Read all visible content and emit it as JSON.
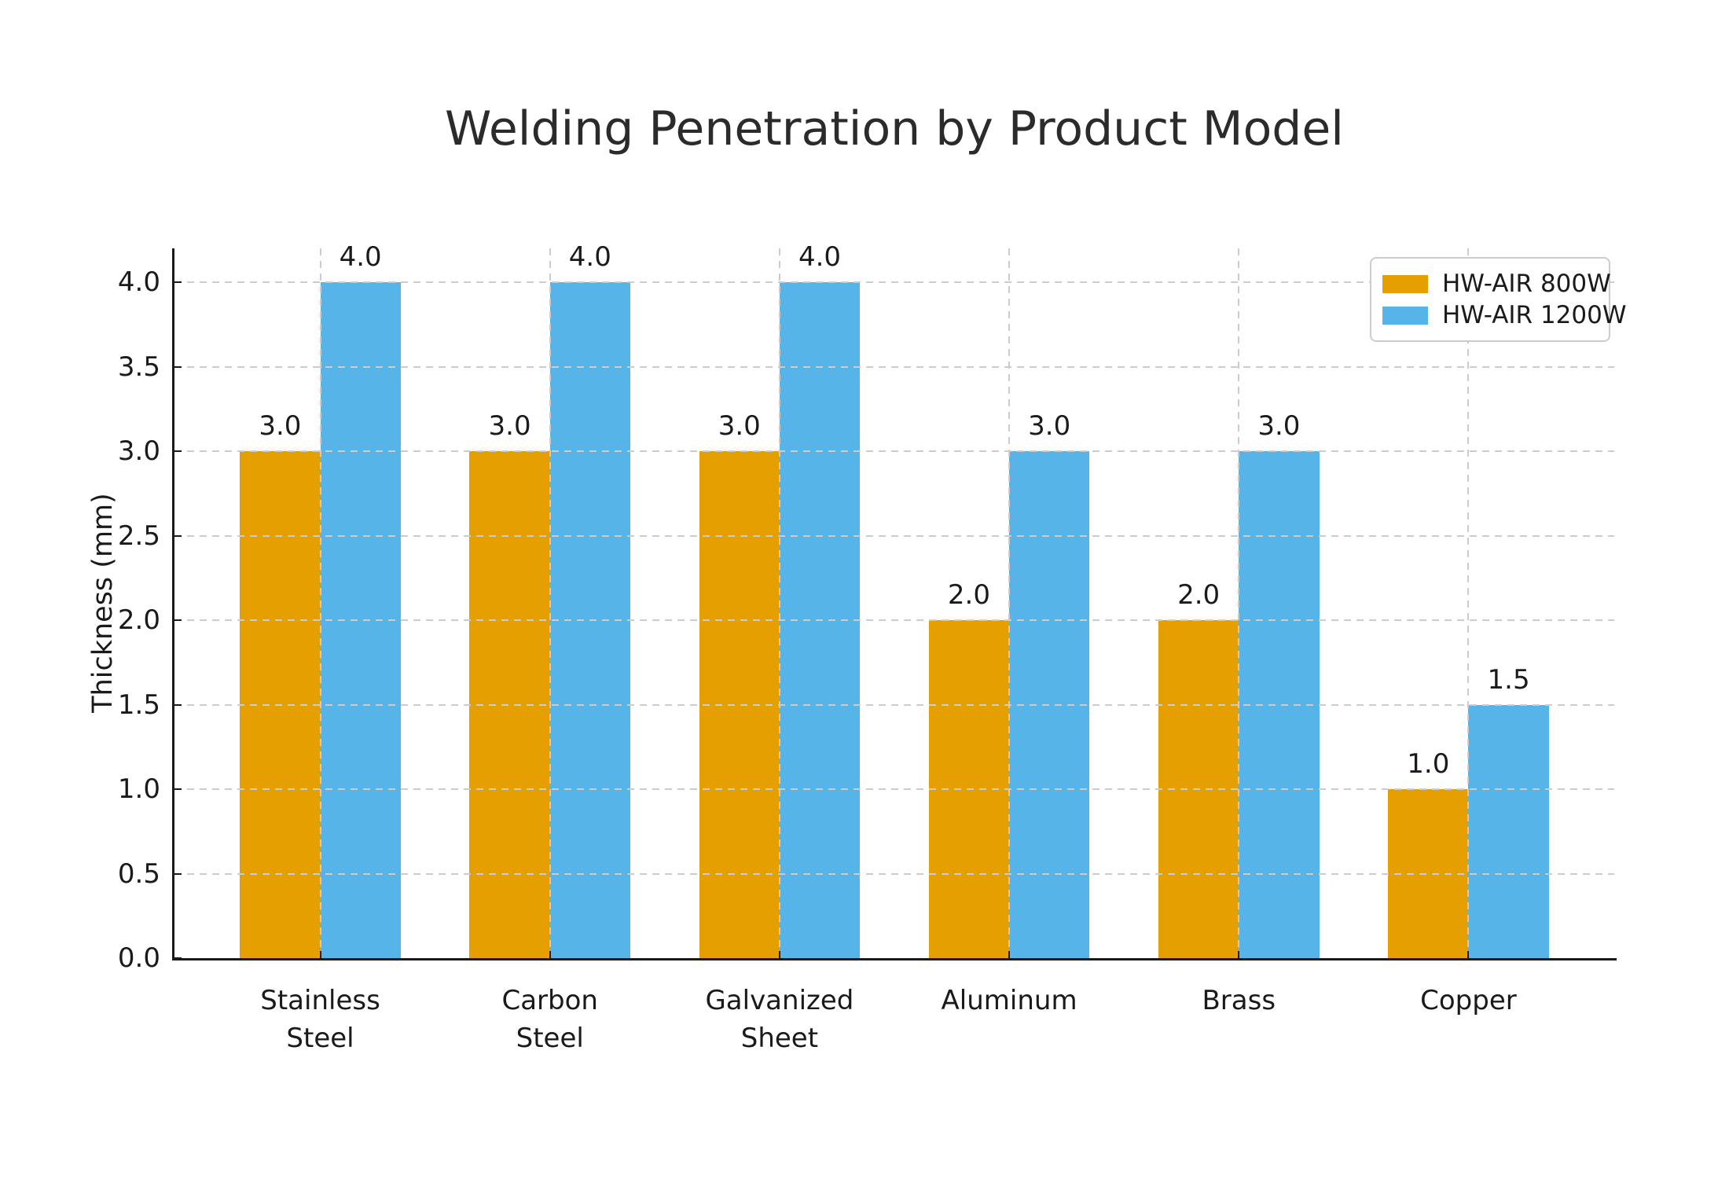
{
  "chart_data": {
    "type": "bar",
    "title": "Welding Penetration by Product Model",
    "ylabel": "Thickness (mm)",
    "xlabel": "",
    "categories": [
      "Stainless\nSteel",
      "Carbon\nSteel",
      "Galvanized\nSheet",
      "Aluminum",
      "Brass",
      "Copper"
    ],
    "series": [
      {
        "name": "HW-AIR 800W",
        "color": "#E69F00",
        "values": [
          3.0,
          3.0,
          3.0,
          2.0,
          2.0,
          1.0
        ]
      },
      {
        "name": "HW-AIR 1200W",
        "color": "#56B4E9",
        "values": [
          4.0,
          4.0,
          4.0,
          3.0,
          3.0,
          1.5
        ]
      }
    ],
    "ylim": [
      0,
      4.2
    ],
    "yticks": [
      0.0,
      0.5,
      1.0,
      1.5,
      2.0,
      2.5,
      3.0,
      3.5,
      4.0
    ],
    "bar_width_fraction": 0.35,
    "grid": "dashed, horizontal and vertical, drawn above bars",
    "legend_position": "upper right",
    "bar_value_labels": "one decimal above each bar",
    "colors": {
      "axis": "#1a1a1a",
      "grid": "#cccccc",
      "background": "#ffffff",
      "legend_border": "#cccccc"
    }
  }
}
